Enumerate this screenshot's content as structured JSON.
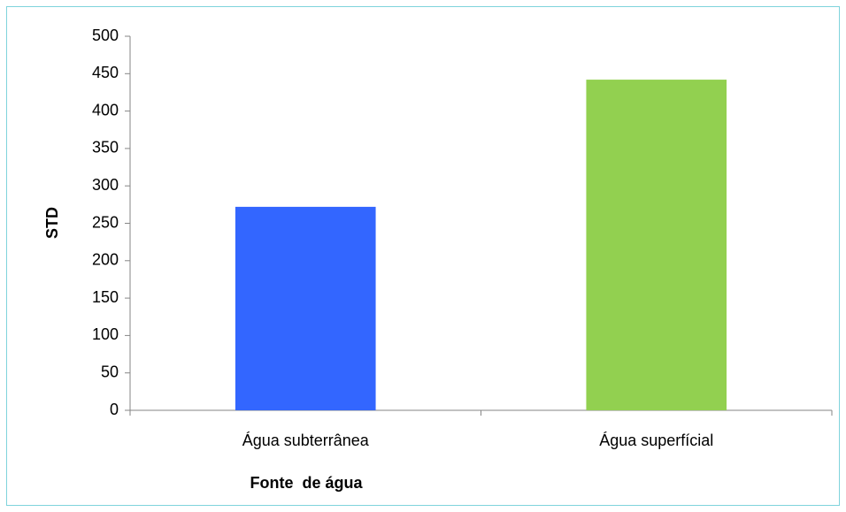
{
  "chart_data": {
    "type": "bar",
    "x_label": "Fonte  de água",
    "y_label": "STD",
    "categories": [
      "Água subterrânea",
      "Água superfícial"
    ],
    "values": [
      272,
      442
    ],
    "colors": [
      "#3366ff",
      "#92d050"
    ],
    "ylim": [
      0,
      500
    ],
    "yticks": [
      0,
      50,
      100,
      150,
      200,
      250,
      300,
      350,
      400,
      450,
      500
    ],
    "grid": false
  }
}
